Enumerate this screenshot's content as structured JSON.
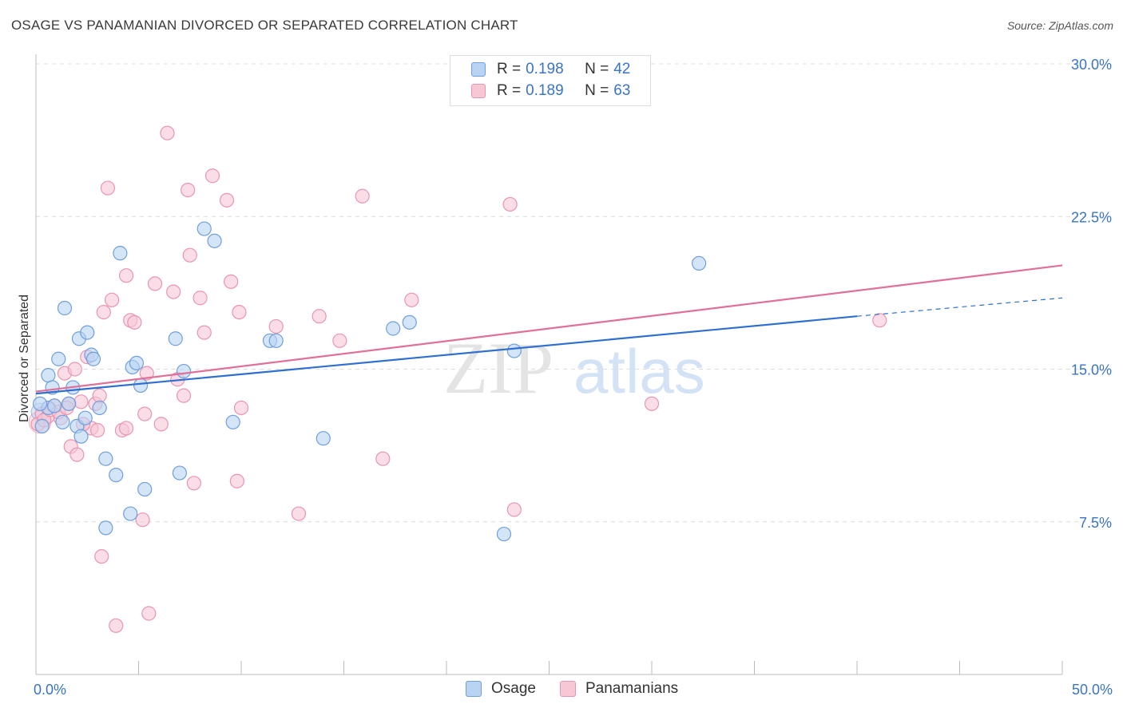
{
  "header": {
    "title": "OSAGE VS PANAMANIAN DIVORCED OR SEPARATED CORRELATION CHART",
    "source": "Source: ZipAtlas.com"
  },
  "colors": {
    "osage_fill": "#b9d3f3",
    "osage_stroke": "#6f9fdc",
    "osage_line": "#2f6fcf",
    "pan_fill": "#f7c7d6",
    "pan_stroke": "#e896b0",
    "pan_line": "#e0709a",
    "axis_text": "#3a74c4"
  },
  "legend": {
    "osage": {
      "r_label": "R = ",
      "r_value": "0.198",
      "n_label": "N = ",
      "n_value": "42"
    },
    "panamanians": {
      "r_label": "R = ",
      "r_value": "0.189",
      "n_label": "N = ",
      "n_value": "63"
    }
  },
  "bottom_legend": {
    "osage": "Osage",
    "panamanians": "Panamanians"
  },
  "watermark": {
    "zip": "ZIP",
    "atlas": "atlas"
  },
  "chart_data": {
    "type": "scatter",
    "title": "OSAGE VS PANAMANIAN DIVORCED OR SEPARATED CORRELATION CHART",
    "xlabel": "",
    "ylabel": "Divorced or Separated",
    "xlim": [
      0,
      50
    ],
    "ylim": [
      0,
      30
    ],
    "x_tick_labels": [
      "0.0%",
      "50.0%"
    ],
    "y_ticks": [
      7.5,
      15.0,
      22.5,
      30.0
    ],
    "y_tick_labels": [
      "7.5%",
      "15.0%",
      "22.5%",
      "30.0%"
    ],
    "grid": true,
    "series": [
      {
        "name": "Osage",
        "points": [
          [
            0.3,
            12.2
          ],
          [
            0.6,
            13.1
          ],
          [
            0.6,
            14.7
          ],
          [
            0.8,
            14.1
          ],
          [
            1.1,
            15.5
          ],
          [
            1.3,
            12.4
          ],
          [
            1.4,
            18.0
          ],
          [
            1.6,
            13.3
          ],
          [
            1.8,
            14.1
          ],
          [
            2.0,
            12.2
          ],
          [
            2.1,
            16.5
          ],
          [
            2.2,
            11.7
          ],
          [
            2.4,
            12.6
          ],
          [
            2.5,
            16.8
          ],
          [
            2.7,
            15.7
          ],
          [
            2.8,
            15.5
          ],
          [
            3.1,
            13.1
          ],
          [
            3.4,
            10.6
          ],
          [
            3.9,
            9.8
          ],
          [
            4.1,
            20.7
          ],
          [
            4.6,
            7.9
          ],
          [
            4.7,
            15.1
          ],
          [
            4.9,
            15.3
          ],
          [
            5.1,
            14.2
          ],
          [
            5.3,
            9.1
          ],
          [
            6.8,
            16.5
          ],
          [
            7.0,
            9.9
          ],
          [
            7.2,
            14.9
          ],
          [
            8.2,
            21.9
          ],
          [
            8.7,
            21.3
          ],
          [
            9.6,
            12.4
          ],
          [
            11.4,
            16.4
          ],
          [
            11.7,
            16.4
          ],
          [
            14.0,
            11.6
          ],
          [
            17.4,
            17.0
          ],
          [
            18.2,
            17.3
          ],
          [
            22.8,
            6.9
          ],
          [
            23.3,
            15.9
          ],
          [
            32.3,
            20.2
          ],
          [
            3.4,
            7.2
          ],
          [
            0.2,
            13.3
          ],
          [
            0.9,
            13.2
          ]
        ],
        "trend": {
          "x": [
            0,
            40,
            50
          ],
          "y": [
            13.8,
            17.6,
            18.5
          ],
          "solid_until": 40
        }
      },
      {
        "name": "Panamanians",
        "points": [
          [
            0.1,
            12.3
          ],
          [
            0.3,
            12.8
          ],
          [
            0.6,
            12.7
          ],
          [
            0.9,
            13.2
          ],
          [
            1.2,
            12.6
          ],
          [
            1.4,
            14.8
          ],
          [
            1.6,
            13.3
          ],
          [
            1.7,
            11.2
          ],
          [
            1.9,
            15.0
          ],
          [
            2.0,
            10.8
          ],
          [
            2.2,
            13.4
          ],
          [
            2.5,
            15.6
          ],
          [
            2.7,
            12.1
          ],
          [
            2.9,
            13.3
          ],
          [
            3.0,
            12.0
          ],
          [
            3.1,
            13.7
          ],
          [
            3.3,
            17.8
          ],
          [
            3.5,
            23.9
          ],
          [
            3.7,
            18.4
          ],
          [
            3.9,
            2.4
          ],
          [
            4.2,
            12.0
          ],
          [
            4.4,
            12.1
          ],
          [
            4.4,
            19.6
          ],
          [
            4.6,
            17.4
          ],
          [
            4.8,
            17.3
          ],
          [
            5.2,
            7.6
          ],
          [
            5.3,
            12.8
          ],
          [
            5.4,
            14.8
          ],
          [
            5.5,
            3.0
          ],
          [
            5.8,
            19.2
          ],
          [
            6.1,
            12.3
          ],
          [
            6.4,
            26.6
          ],
          [
            6.7,
            18.8
          ],
          [
            7.2,
            13.7
          ],
          [
            7.4,
            23.8
          ],
          [
            7.5,
            20.6
          ],
          [
            7.7,
            9.4
          ],
          [
            8.0,
            18.5
          ],
          [
            8.2,
            16.8
          ],
          [
            8.6,
            24.5
          ],
          [
            9.3,
            23.3
          ],
          [
            9.5,
            19.3
          ],
          [
            9.8,
            9.5
          ],
          [
            9.9,
            17.8
          ],
          [
            10.0,
            13.1
          ],
          [
            11.7,
            17.1
          ],
          [
            12.8,
            7.9
          ],
          [
            13.8,
            17.6
          ],
          [
            14.8,
            16.4
          ],
          [
            15.9,
            23.5
          ],
          [
            16.9,
            10.6
          ],
          [
            18.3,
            18.4
          ],
          [
            23.1,
            23.1
          ],
          [
            23.3,
            8.1
          ],
          [
            30.0,
            13.3
          ],
          [
            41.1,
            17.4
          ],
          [
            0.4,
            12.5
          ],
          [
            0.7,
            13.0
          ],
          [
            1.1,
            12.9
          ],
          [
            1.5,
            13.1
          ],
          [
            3.2,
            5.8
          ],
          [
            6.9,
            14.5
          ],
          [
            2.3,
            12.3
          ]
        ],
        "trend": {
          "x": [
            0,
            50
          ],
          "y": [
            13.9,
            20.1
          ],
          "solid_until": 50
        }
      }
    ]
  }
}
